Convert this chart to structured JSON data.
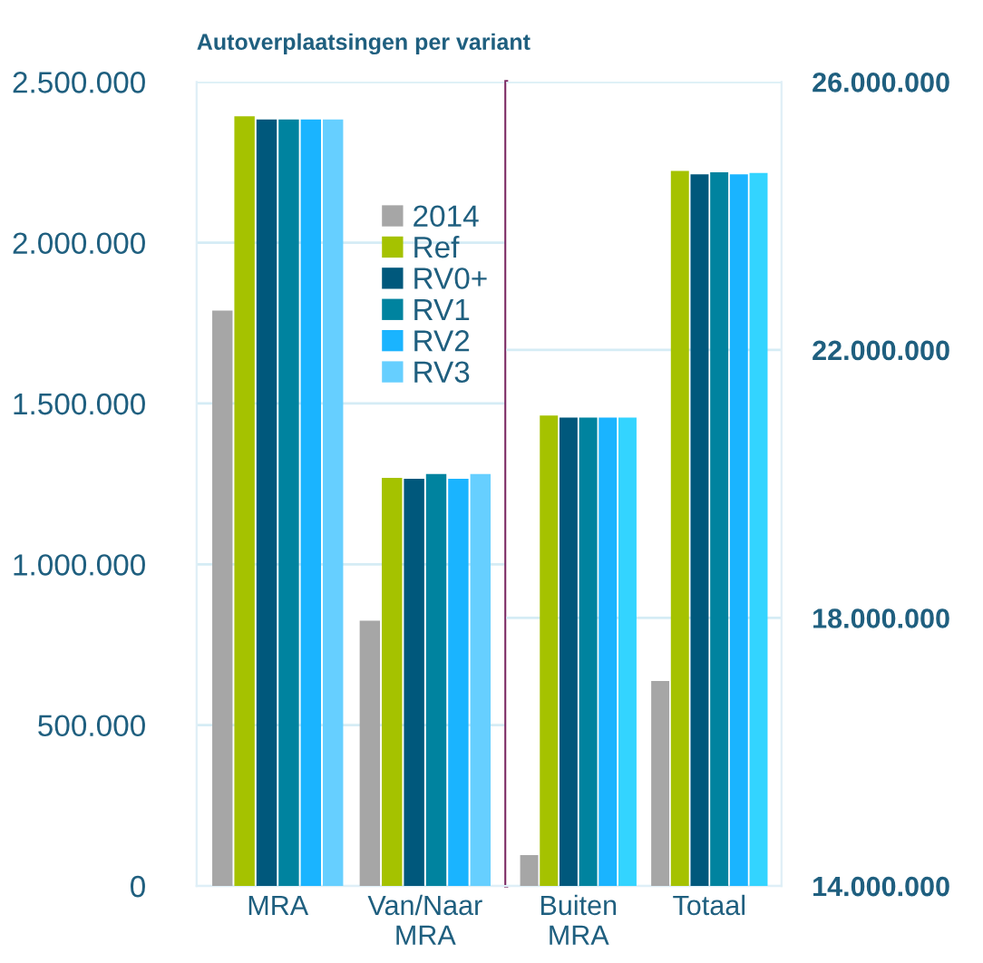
{
  "chart_data": [
    {
      "type": "bar",
      "title": "Autoverplaatsingen per variant",
      "categories": [
        "MRA",
        "Van/Naar\nMRA"
      ],
      "series": [
        {
          "name": "2014",
          "color": "#a6a6a6",
          "values": [
            1789000,
            825000
          ]
        },
        {
          "name": "Ref",
          "color": "#a5c200",
          "values": [
            2393000,
            1269000
          ]
        },
        {
          "name": "RV0+",
          "color": "#00587c",
          "values": [
            2383000,
            1266000
          ]
        },
        {
          "name": "RV1",
          "color": "#00839f",
          "values": [
            2383000,
            1281000
          ]
        },
        {
          "name": "RV2",
          "color": "#1ab4ff",
          "values": [
            2383000,
            1266000
          ]
        },
        {
          "name": "RV3",
          "color": "#66cfff",
          "values": [
            2383000,
            1281000
          ]
        }
      ],
      "ylim": [
        0,
        2500000
      ],
      "yticks": [
        {
          "value": 0,
          "label": "0"
        },
        {
          "value": 500000,
          "label": "500.000"
        },
        {
          "value": 1000000,
          "label": "1.000.000"
        },
        {
          "value": 1500000,
          "label": "1.500.000"
        },
        {
          "value": 2000000,
          "label": "2.000.000"
        },
        {
          "value": 2500000,
          "label": "2.500.000"
        }
      ],
      "grid": "y",
      "legend": "top right"
    },
    {
      "type": "bar",
      "categories": [
        "Buiten\nMRA",
        "Totaal"
      ],
      "series": [
        {
          "color": "#a6a6a6",
          "values": [
            14460000,
            17060000
          ],
          "axis": "y2"
        },
        {
          "color": "#a5c200",
          "values": [
            21020000,
            24670000
          ],
          "axis": "y2"
        },
        {
          "color": "#00587c",
          "values": [
            20990000,
            24620000
          ],
          "axis": "y2"
        },
        {
          "color": "#00839f",
          "values": [
            20990000,
            24650000
          ],
          "axis": "y2"
        },
        {
          "color": "#1ab4ff",
          "values": [
            20990000,
            24620000
          ],
          "axis": "y2"
        },
        {
          "color": "#33d4ff",
          "values": [
            20990000,
            24640000
          ],
          "axis": "y2"
        }
      ],
      "y2lim": [
        14000000,
        26000000
      ],
      "y2ticks": [
        {
          "value": 14000000,
          "label": "14.000.000"
        },
        {
          "value": 18000000,
          "label": "18.000.000"
        },
        {
          "value": 22000000,
          "label": "22.000.000"
        },
        {
          "value": 26000000,
          "label": "26.000.000"
        }
      ],
      "grid": "y",
      "legend": false
    }
  ]
}
